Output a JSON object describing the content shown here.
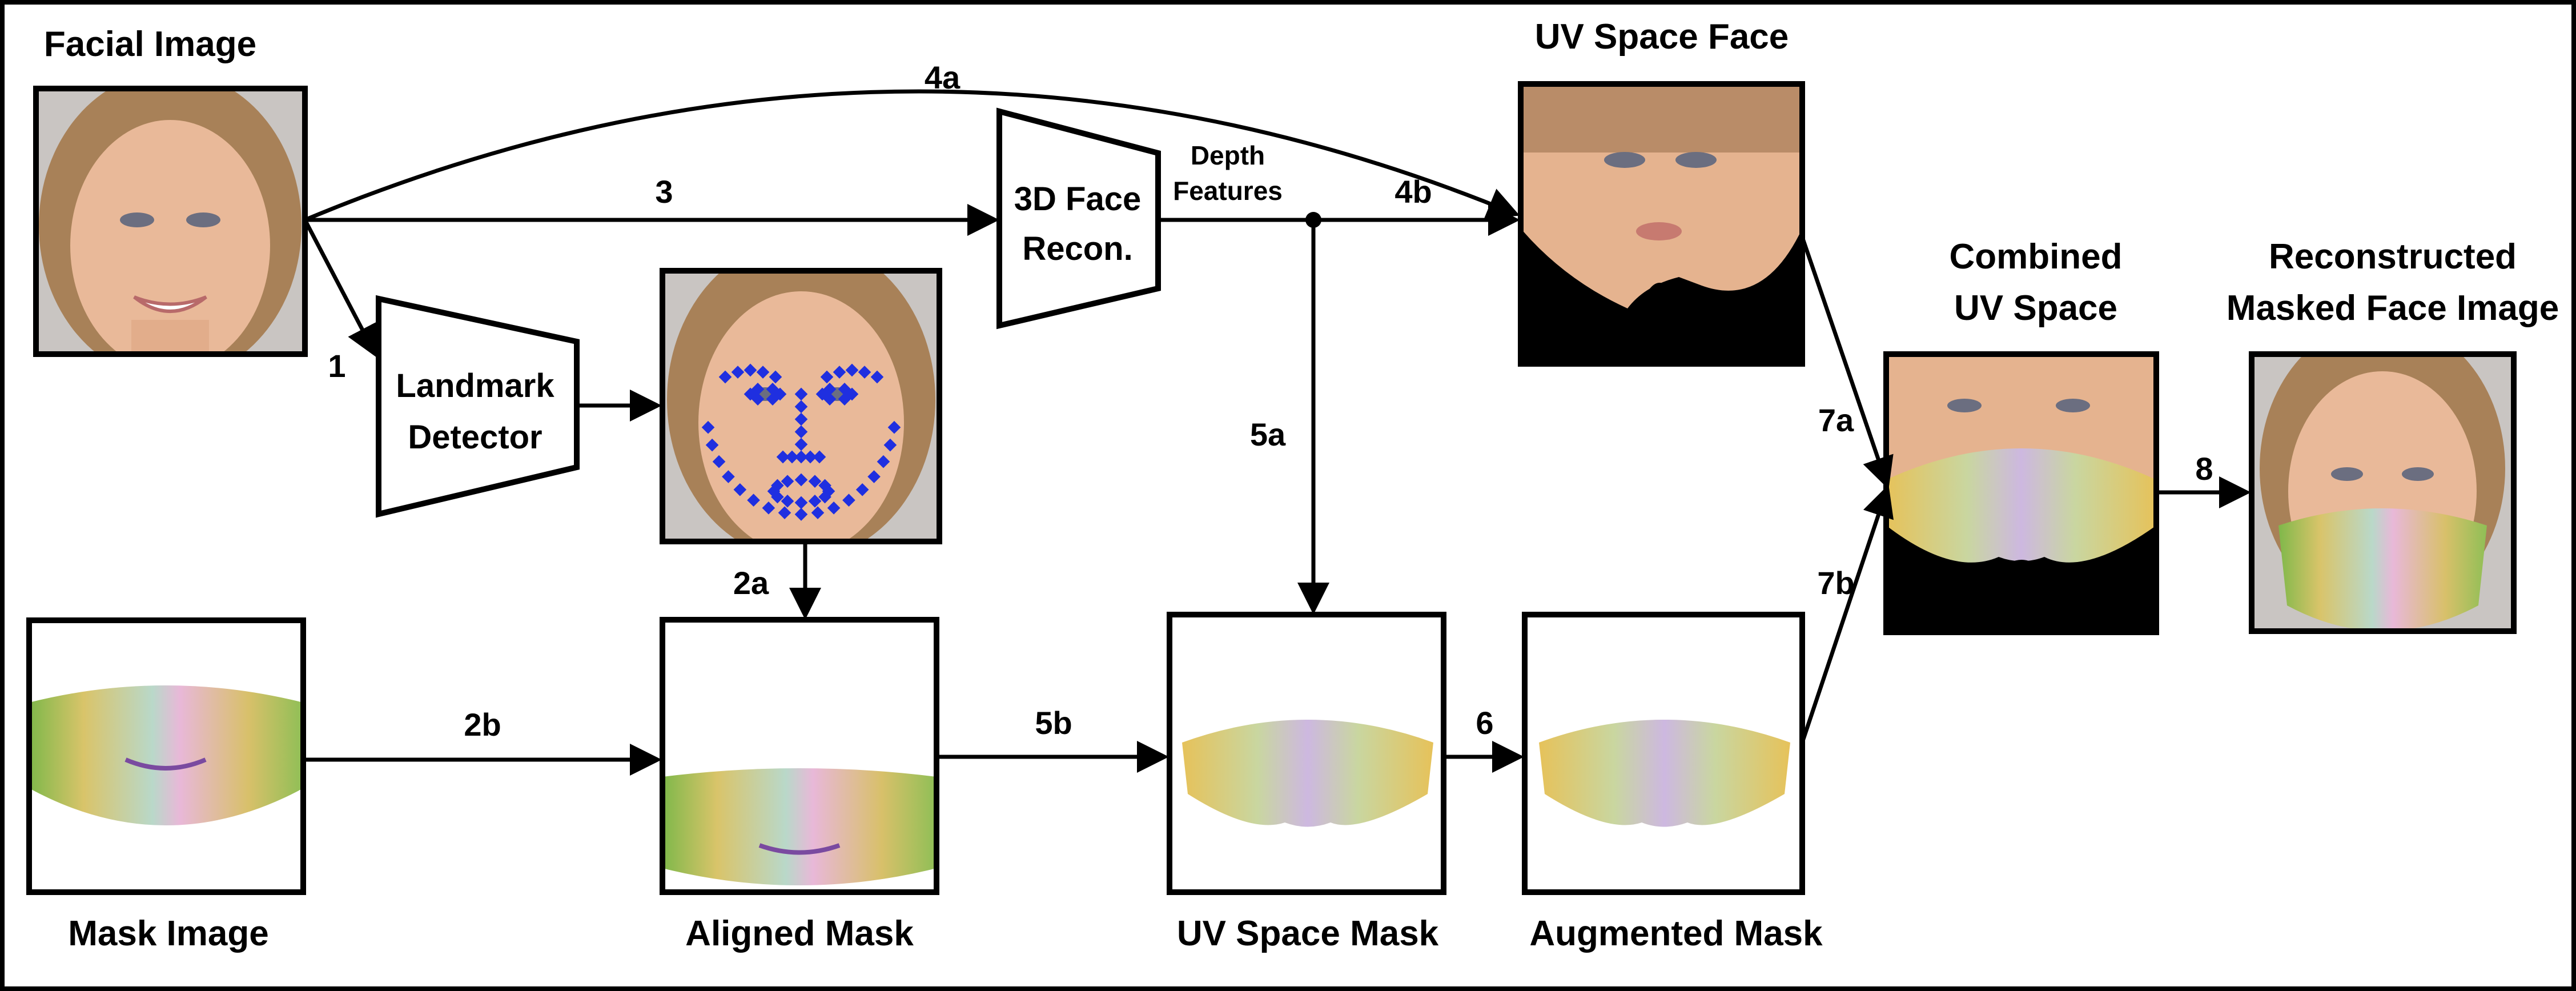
{
  "labels": {
    "facial_image": "Facial Image",
    "uv_space_face": "UV Space Face",
    "combined_uv_space_1": "Combined",
    "combined_uv_space_2": "UV Space",
    "reconstructed_1": "Reconstructed",
    "reconstructed_2": "Masked Face Image",
    "mask_image": "Mask Image",
    "aligned_mask": "Aligned Mask",
    "uv_space_mask": "UV Space Mask",
    "augmented_mask": "Augmented Mask"
  },
  "modules": {
    "landmark_detector_1": "Landmark",
    "landmark_detector_2": "Detector",
    "face_recon_1": "3D Face",
    "face_recon_2": "Recon.",
    "depth_features_1": "Depth",
    "depth_features_2": "Features"
  },
  "steps": {
    "s1": "1",
    "s2a": "2a",
    "s2b": "2b",
    "s3": "3",
    "s4a": "4a",
    "s4b": "4b",
    "s5a": "5a",
    "s5b": "5b",
    "s6": "6",
    "s7a": "7a",
    "s7b": "7b",
    "s8": "8"
  },
  "colors": {
    "line": "#000000",
    "landmark": "#1f2fe0",
    "panel_bg": "#c9c5c2",
    "uv_bg": "#000000",
    "skin": "#e9b999",
    "hair": "#a88158"
  }
}
